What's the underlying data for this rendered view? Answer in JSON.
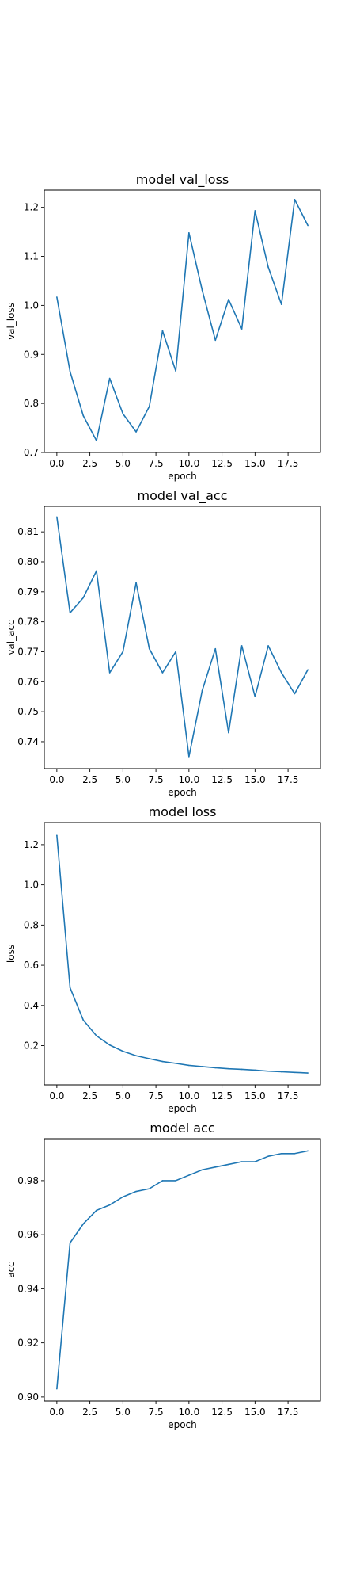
{
  "chart_data": [
    {
      "type": "line",
      "title": "model val_loss",
      "xlabel": "epoch",
      "ylabel": "val_loss",
      "xlim": [
        -0.95,
        19.95
      ],
      "ylim": [
        0.7,
        1.235
      ],
      "xticks": [
        0.0,
        2.5,
        5.0,
        7.5,
        10.0,
        12.5,
        15.0,
        17.5
      ],
      "xtick_labels": [
        "0.0",
        "2.5",
        "5.0",
        "7.5",
        "10.0",
        "12.5",
        "15.0",
        "17.5"
      ],
      "yticks": [
        0.7,
        0.8,
        0.9,
        1.0,
        1.1,
        1.2
      ],
      "ytick_labels": [
        "0.7",
        "0.8",
        "0.9",
        "1.0",
        "1.1",
        "1.2"
      ],
      "color": "#1f77b4",
      "grid": false,
      "x": [
        0,
        1,
        2,
        3,
        4,
        5,
        6,
        7,
        8,
        9,
        10,
        11,
        12,
        13,
        14,
        15,
        16,
        17,
        18,
        19
      ],
      "y": [
        1.017,
        0.865,
        0.775,
        0.724,
        0.851,
        0.779,
        0.742,
        0.794,
        0.948,
        0.866,
        1.148,
        1.031,
        0.929,
        1.012,
        0.952,
        1.193,
        1.078,
        1.002,
        1.216,
        1.163
      ]
    },
    {
      "type": "line",
      "title": "model val_acc",
      "xlabel": "epoch",
      "ylabel": "val_acc",
      "xlim": [
        -0.95,
        19.95
      ],
      "ylim": [
        0.731,
        0.8185
      ],
      "xticks": [
        0.0,
        2.5,
        5.0,
        7.5,
        10.0,
        12.5,
        15.0,
        17.5
      ],
      "xtick_labels": [
        "0.0",
        "2.5",
        "5.0",
        "7.5",
        "10.0",
        "12.5",
        "15.0",
        "17.5"
      ],
      "yticks": [
        0.74,
        0.75,
        0.76,
        0.77,
        0.78,
        0.79,
        0.8,
        0.81
      ],
      "ytick_labels": [
        "0.74",
        "0.75",
        "0.76",
        "0.77",
        "0.78",
        "0.79",
        "0.80",
        "0.81"
      ],
      "color": "#1f77b4",
      "grid": false,
      "x": [
        0,
        1,
        2,
        3,
        4,
        5,
        6,
        7,
        8,
        9,
        10,
        11,
        12,
        13,
        14,
        15,
        16,
        17,
        18,
        19
      ],
      "y": [
        0.815,
        0.783,
        0.788,
        0.797,
        0.763,
        0.77,
        0.793,
        0.771,
        0.763,
        0.77,
        0.735,
        0.757,
        0.771,
        0.743,
        0.772,
        0.755,
        0.772,
        0.763,
        0.756,
        0.764
      ]
    },
    {
      "type": "line",
      "title": "model loss",
      "xlabel": "epoch",
      "ylabel": "loss",
      "xlim": [
        -0.95,
        19.95
      ],
      "ylim": [
        0.005,
        1.31
      ],
      "xticks": [
        0.0,
        2.5,
        5.0,
        7.5,
        10.0,
        12.5,
        15.0,
        17.5
      ],
      "xtick_labels": [
        "0.0",
        "2.5",
        "5.0",
        "7.5",
        "10.0",
        "12.5",
        "15.0",
        "17.5"
      ],
      "yticks": [
        0.2,
        0.4,
        0.6,
        0.8,
        1.0,
        1.2
      ],
      "ytick_labels": [
        "0.2",
        "0.4",
        "0.6",
        "0.8",
        "1.0",
        "1.2"
      ],
      "color": "#1f77b4",
      "grid": false,
      "x": [
        0,
        1,
        2,
        3,
        4,
        5,
        6,
        7,
        8,
        9,
        10,
        11,
        12,
        13,
        14,
        15,
        16,
        17,
        18,
        19
      ],
      "y": [
        1.246,
        0.488,
        0.327,
        0.249,
        0.203,
        0.172,
        0.15,
        0.135,
        0.121,
        0.112,
        0.102,
        0.096,
        0.09,
        0.085,
        0.082,
        0.078,
        0.073,
        0.07,
        0.067,
        0.064
      ]
    },
    {
      "type": "line",
      "title": "model acc",
      "xlabel": "epoch",
      "ylabel": "acc",
      "xlim": [
        -0.95,
        19.95
      ],
      "ylim": [
        0.8985,
        0.9955
      ],
      "xticks": [
        0.0,
        2.5,
        5.0,
        7.5,
        10.0,
        12.5,
        15.0,
        17.5
      ],
      "xtick_labels": [
        "0.0",
        "2.5",
        "5.0",
        "7.5",
        "10.0",
        "12.5",
        "15.0",
        "17.5"
      ],
      "yticks": [
        0.9,
        0.92,
        0.94,
        0.96,
        0.98
      ],
      "ytick_labels": [
        "0.90",
        "0.92",
        "0.94",
        "0.96",
        "0.98"
      ],
      "color": "#1f77b4",
      "grid": false,
      "x": [
        0,
        1,
        2,
        3,
        4,
        5,
        6,
        7,
        8,
        9,
        10,
        11,
        12,
        13,
        14,
        15,
        16,
        17,
        18,
        19
      ],
      "y": [
        0.903,
        0.957,
        0.964,
        0.969,
        0.971,
        0.974,
        0.976,
        0.977,
        0.98,
        0.98,
        0.982,
        0.984,
        0.985,
        0.986,
        0.987,
        0.987,
        0.989,
        0.99,
        0.99,
        0.991
      ]
    }
  ]
}
